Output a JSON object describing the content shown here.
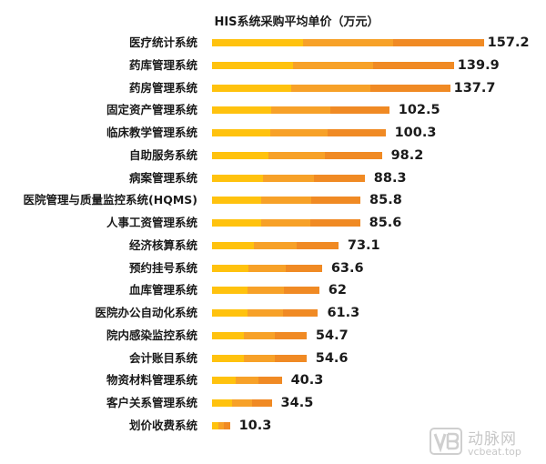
{
  "chart_data": {
    "type": "bar",
    "orientation": "horizontal",
    "title": "HIS系统采购平均单价（万元）",
    "xlabel": "",
    "ylabel": "",
    "unit": "万元",
    "grid": false,
    "legend": null,
    "xlim": [
      0,
      160
    ],
    "categories": [
      "医疗统计系统",
      "药库管理系统",
      "药房管理系统",
      "固定资产管理系统",
      "临床教学管理系统",
      "自助服务系统",
      "病案管理系统",
      "医院管理与质量监控系统(HQMS)",
      "人事工资管理系统",
      "经济核算系统",
      "预约挂号系统",
      "血库管理系统",
      "医院办公自动化系统",
      "院内感染监控系统",
      "会计账目系统",
      "物资材料管理系统",
      "客户关系管理系统",
      "划价收费系统"
    ],
    "values": [
      157.2,
      139.9,
      137.7,
      102.5,
      100.3,
      98.2,
      88.3,
      85.8,
      85.6,
      73.1,
      63.6,
      62,
      61.3,
      54.7,
      54.6,
      40.3,
      34.5,
      10.3
    ],
    "value_labels": [
      "157.2",
      "139.9",
      "137.7",
      "102.5",
      "100.3",
      "98.2",
      "88.3",
      "85.8",
      "85.6",
      "73.1",
      "63.6",
      "62",
      "61.3",
      "54.7",
      "54.6",
      "40.3",
      "34.5",
      "10.3"
    ],
    "bar_colors": [
      "#FFC20E",
      "#F7A128",
      "#F08A24"
    ]
  },
  "watermark": {
    "brand_cn": "动脉网",
    "brand_en": "vcbeat.top"
  }
}
